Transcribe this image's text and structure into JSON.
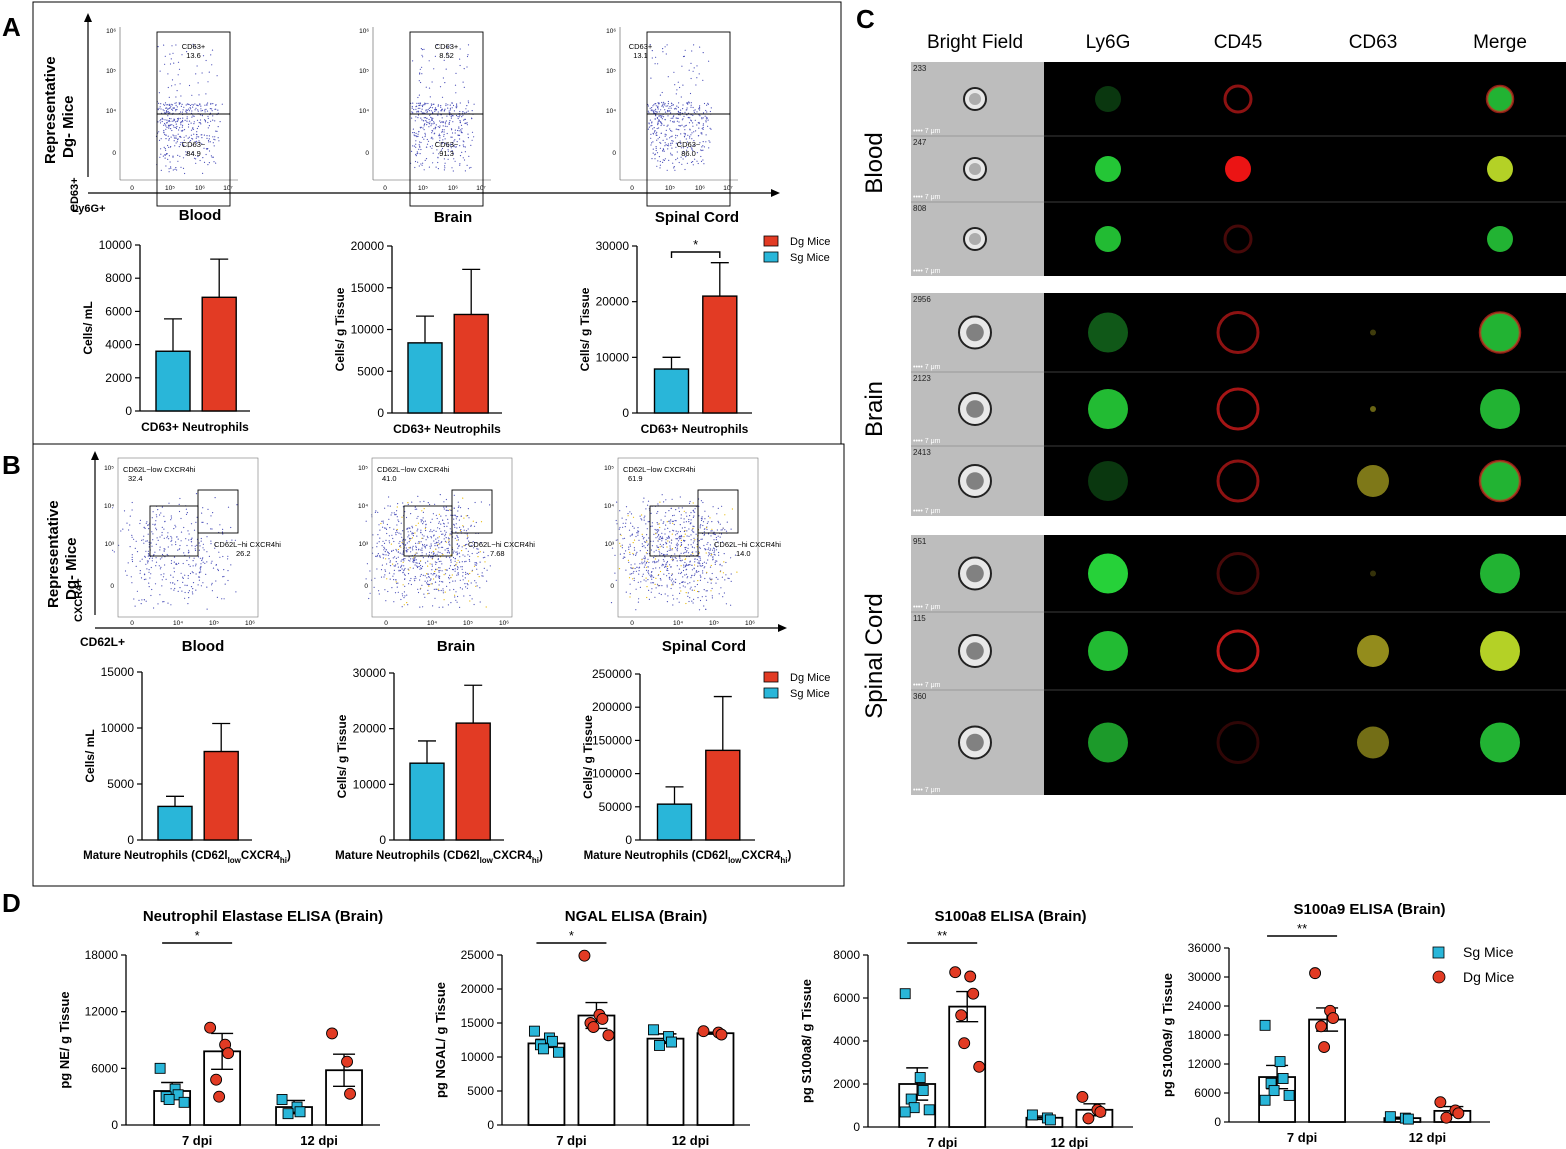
{
  "colors": {
    "sg": "#29b6d9",
    "dg": "#e23b24",
    "text": "#000000",
    "dot": "#4a4fb8"
  },
  "legend": {
    "dg": "Dg Mice",
    "sg": "Sg Mice"
  },
  "panel_labels": {
    "a": "A",
    "b": "B",
    "c": "C",
    "d": "D"
  },
  "common": {
    "tissues": [
      "Blood",
      "Brain",
      "Spinal Cord"
    ],
    "representative": "Representative",
    "dg_mice": "Dg- Mice",
    "cells_ml": "Cells/ mL",
    "cells_tissue": "Cells/ g Tissue",
    "scale_bar": "7 μm"
  },
  "panel_a": {
    "y_marker": "CD63+",
    "x_marker": "Ly6G+",
    "flow": [
      {
        "tissue": "Blood",
        "gates": [
          {
            "name": "CD63+",
            "value": "13.6"
          },
          {
            "name": "CD63−",
            "value": "84.9"
          }
        ]
      },
      {
        "tissue": "Brain",
        "gates": [
          {
            "name": "CD63+",
            "value": "8.52"
          },
          {
            "name": "CD63−",
            "value": "91.3"
          }
        ]
      },
      {
        "tissue": "Spinal Cord",
        "gates": [
          {
            "name": "CD63+",
            "value": "13.1"
          },
          {
            "name": "CD63−",
            "value": "86.0"
          }
        ]
      }
    ],
    "flow_ticks": {
      "y": [
        "10⁶",
        "10⁵",
        "10⁴",
        "0"
      ],
      "x": [
        [
          "0",
          "10⁵",
          "10⁶",
          "10⁷"
        ],
        [
          "0",
          "10⁵",
          "10⁶",
          "10⁷"
        ],
        [
          "0",
          "10⁵",
          "10⁶",
          "10⁷"
        ]
      ]
    }
  },
  "panel_b": {
    "y_marker": "CXCR4+",
    "x_marker": "CD62L+",
    "flow": [
      {
        "tissue": "Blood",
        "gates": [
          {
            "name": "CD62L−low CXCR4hi",
            "value": "32.4"
          },
          {
            "name": "CD62L−hi CXCR4hi",
            "value": "26.2"
          }
        ]
      },
      {
        "tissue": "Brain",
        "gates": [
          {
            "name": "CD62L−low CXCR4hi",
            "value": "41.0"
          },
          {
            "name": "CD62L−hi CXCR4hi",
            "value": "7.68"
          }
        ]
      },
      {
        "tissue": "Spinal Cord",
        "gates": [
          {
            "name": "CD62L−low CXCR4hi",
            "value": "61.9"
          },
          {
            "name": "CD62L−hi CXCR4hi",
            "value": "14.0"
          }
        ]
      }
    ],
    "flow_ticks": {
      "y": [
        "10⁵",
        "10⁴",
        "10³",
        "0"
      ],
      "x": [
        [
          "0",
          "10⁴",
          "10⁵",
          "10⁶"
        ],
        [
          "0",
          "10⁴",
          "10⁵",
          "10⁶"
        ],
        [
          "0",
          "10⁴",
          "10⁵",
          "10⁶"
        ]
      ]
    }
  },
  "panel_c": {
    "columns": [
      "Bright Field",
      "Ly6G",
      "CD45",
      "CD63",
      "Merge"
    ],
    "groups": [
      {
        "tissue": "Blood",
        "cells": [
          {
            "id": "233",
            "ly6g": 0.25,
            "cd45": 0.6,
            "cd63": 0.0,
            "merge": "rg"
          },
          {
            "id": "247",
            "ly6g": 0.9,
            "cd45": 1.0,
            "cd63": 0.0,
            "merge": "y"
          },
          {
            "id": "808",
            "ly6g": 0.85,
            "cd45": 0.3,
            "cd63": 0.0,
            "merge": "g"
          }
        ]
      },
      {
        "tissue": "Brain",
        "cells": [
          {
            "id": "2956",
            "ly6g": 0.4,
            "cd45": 0.6,
            "cd63": 0.1,
            "merge": "rg"
          },
          {
            "id": "2123",
            "ly6g": 0.85,
            "cd45": 0.7,
            "cd63": 0.3,
            "merge": "g"
          },
          {
            "id": "2413",
            "ly6g": 0.25,
            "cd45": 0.6,
            "cd63": 0.4,
            "merge": "rg"
          }
        ]
      },
      {
        "tissue": "Spinal Cord",
        "cells": [
          {
            "id": "951",
            "ly6g": 0.95,
            "cd45": 0.3,
            "cd63": 0.05,
            "merge": "g"
          },
          {
            "id": "115",
            "ly6g": 0.85,
            "cd45": 0.8,
            "cd63": 0.5,
            "merge": "y"
          },
          {
            "id": "360",
            "ly6g": 0.7,
            "cd45": 0.2,
            "cd63": 0.35,
            "merge": "g"
          }
        ]
      }
    ]
  },
  "chart_data": [
    {
      "id": "A-blood",
      "type": "bar",
      "title": "",
      "xlabel": "CD63+ Neutrophils",
      "ylabel": "Cells/ mL",
      "ylim": [
        0,
        10000
      ],
      "yticks": [
        0,
        2000,
        4000,
        6000,
        8000,
        10000
      ],
      "series": [
        {
          "name": "Sg Mice",
          "value": 3600,
          "error": 1950
        },
        {
          "name": "Dg Mice",
          "value": 6850,
          "error": 2300
        }
      ],
      "sig": ""
    },
    {
      "id": "A-brain",
      "type": "bar",
      "title": "",
      "xlabel": "CD63+ Neutrophils",
      "ylabel": "Cells/ g Tissue",
      "ylim": [
        0,
        20000
      ],
      "yticks": [
        0,
        5000,
        10000,
        15000,
        20000
      ],
      "series": [
        {
          "name": "Sg Mice",
          "value": 8400,
          "error": 3200
        },
        {
          "name": "Dg Mice",
          "value": 11800,
          "error": 5400
        }
      ],
      "sig": ""
    },
    {
      "id": "A-spinal",
      "type": "bar",
      "title": "",
      "xlabel": "CD63+ Neutrophils",
      "ylabel": "Cells/ g Tissue",
      "ylim": [
        0,
        30000
      ],
      "yticks": [
        0,
        10000,
        20000,
        30000
      ],
      "series": [
        {
          "name": "Sg Mice",
          "value": 7900,
          "error": 2100
        },
        {
          "name": "Dg Mice",
          "value": 21000,
          "error": 6000
        }
      ],
      "sig": "*"
    },
    {
      "id": "B-blood",
      "type": "bar",
      "title": "",
      "xlabel_main": "Mature Neutrophils (CD62l",
      "xlabel_sub1": "low",
      "xlabel_mid": "CXCR4",
      "xlabel_sub2": "hi",
      "xlabel_end": ")",
      "ylabel": "Cells/ mL",
      "ylim": [
        0,
        15000
      ],
      "yticks": [
        0,
        5000,
        10000,
        15000
      ],
      "series": [
        {
          "name": "Sg Mice",
          "value": 3000,
          "error": 900
        },
        {
          "name": "Dg Mice",
          "value": 7900,
          "error": 2500
        }
      ],
      "sig": ""
    },
    {
      "id": "B-brain",
      "type": "bar",
      "title": "",
      "xlabel_main": "Mature Neutrophils (CD62l",
      "xlabel_sub1": "low",
      "xlabel_mid": "CXCR4",
      "xlabel_sub2": "hi",
      "xlabel_end": ")",
      "ylabel": "Cells/ g Tissue",
      "ylim": [
        0,
        30000
      ],
      "yticks": [
        0,
        10000,
        20000,
        30000
      ],
      "series": [
        {
          "name": "Sg Mice",
          "value": 13800,
          "error": 4000
        },
        {
          "name": "Dg Mice",
          "value": 21000,
          "error": 6800
        }
      ],
      "sig": ""
    },
    {
      "id": "B-spinal",
      "type": "bar",
      "title": "",
      "xlabel_main": "Mature Neutrophils (CD62l",
      "xlabel_sub1": "low",
      "xlabel_mid": "CXCR4",
      "xlabel_sub2": "hi",
      "xlabel_end": ")",
      "ylabel": "Cells/ g Tissue",
      "ylim": [
        0,
        250000
      ],
      "yticks": [
        0,
        50000,
        100000,
        150000,
        200000,
        250000
      ],
      "series": [
        {
          "name": "Sg Mice",
          "value": 54000,
          "error": 26000
        },
        {
          "name": "Dg Mice",
          "value": 135000,
          "error": 81000
        }
      ],
      "sig": ""
    },
    {
      "id": "D-ne",
      "type": "bar",
      "title": "Neutrophil Elastase ELISA (Brain)",
      "ylabel": "pg NE/ g Tissue",
      "ylim": [
        0,
        18000
      ],
      "yticks": [
        0,
        6000,
        12000,
        18000
      ],
      "categories": [
        "7 dpi",
        "12 dpi"
      ],
      "series": [
        {
          "name": "Sg Mice",
          "means": [
            3600,
            1900
          ],
          "sems": [
            900,
            700
          ],
          "points": [
            [
              6000,
              3800,
              3200,
              3000,
              2700,
              2400
            ],
            [
              2700,
              1900,
              1400,
              1200
            ]
          ]
        },
        {
          "name": "Dg Mice",
          "means": [
            7800,
            5800
          ],
          "sems": [
            1900,
            1700
          ],
          "points": [
            [
              10300,
              8500,
              7600,
              4800,
              3000
            ],
            [
              9700,
              6700,
              3300
            ]
          ]
        }
      ],
      "sig": "*"
    },
    {
      "id": "D-ngal",
      "type": "bar",
      "title": "NGAL ELISA (Brain)",
      "ylabel": "pg NGAL/ g Tissue",
      "ylim": [
        0,
        25000
      ],
      "yticks": [
        0,
        5000,
        10000,
        15000,
        20000,
        25000
      ],
      "categories": [
        "7 dpi",
        "12 dpi"
      ],
      "series": [
        {
          "name": "Sg Mice",
          "means": [
            12000,
            12700
          ],
          "sems": [
            600,
            700
          ],
          "points": [
            [
              13800,
              12800,
              12300,
              11800,
              11200,
              10700
            ],
            [
              14000,
              13000,
              12200,
              11700
            ]
          ]
        },
        {
          "name": "Dg Mice",
          "means": [
            16100,
            13500
          ],
          "sems": [
            1900,
            150
          ],
          "points": [
            [
              24900,
              16200,
              15600,
              15000,
              14400,
              13200
            ],
            [
              13800,
              13600,
              13300
            ]
          ]
        }
      ],
      "sig": "*"
    },
    {
      "id": "D-s100a8",
      "type": "bar",
      "title": "S100a8 ELISA (Brain)",
      "ylabel": "pg S100a8/ g Tissue",
      "ylim": [
        0,
        8000
      ],
      "yticks": [
        0,
        2000,
        4000,
        6000,
        8000
      ],
      "categories": [
        "7 dpi",
        "12 dpi"
      ],
      "series": [
        {
          "name": "Sg Mice",
          "means": [
            2000,
            430
          ],
          "sems": [
            750,
            80
          ],
          "points": [
            [
              6200,
              2300,
              1700,
              1300,
              900,
              800,
              700
            ],
            [
              560,
              420,
              330
            ]
          ]
        },
        {
          "name": "Dg Mice",
          "means": [
            5600,
            800
          ],
          "sems": [
            700,
            280
          ],
          "points": [
            [
              7200,
              7000,
              6200,
              5200,
              3900,
              2800
            ],
            [
              1400,
              800,
              700,
              400
            ]
          ]
        }
      ],
      "sig": "**"
    },
    {
      "id": "D-s100a9",
      "type": "bar",
      "title": "S100a9 ELISA (Brain)",
      "ylabel": "pg S100a9/ g Tissue",
      "ylim": [
        0,
        36000
      ],
      "yticks": [
        0,
        6000,
        12000,
        18000,
        24000,
        30000,
        36000
      ],
      "categories": [
        "7 dpi",
        "12 dpi"
      ],
      "series": [
        {
          "name": "Sg Mice",
          "means": [
            9300,
            800
          ],
          "sems": [
            2400,
            200
          ],
          "points": [
            [
              20000,
              12500,
              9000,
              8000,
              6500,
              5500,
              4500
            ],
            [
              1100,
              800,
              600
            ]
          ]
        },
        {
          "name": "Dg Mice",
          "means": [
            21200,
            2300
          ],
          "sems": [
            2400,
            900
          ],
          "points": [
            [
              30800,
              23000,
              21500,
              19800,
              15500
            ],
            [
              4100,
              2400,
              1800,
              900
            ]
          ]
        }
      ],
      "sig": "**"
    }
  ]
}
